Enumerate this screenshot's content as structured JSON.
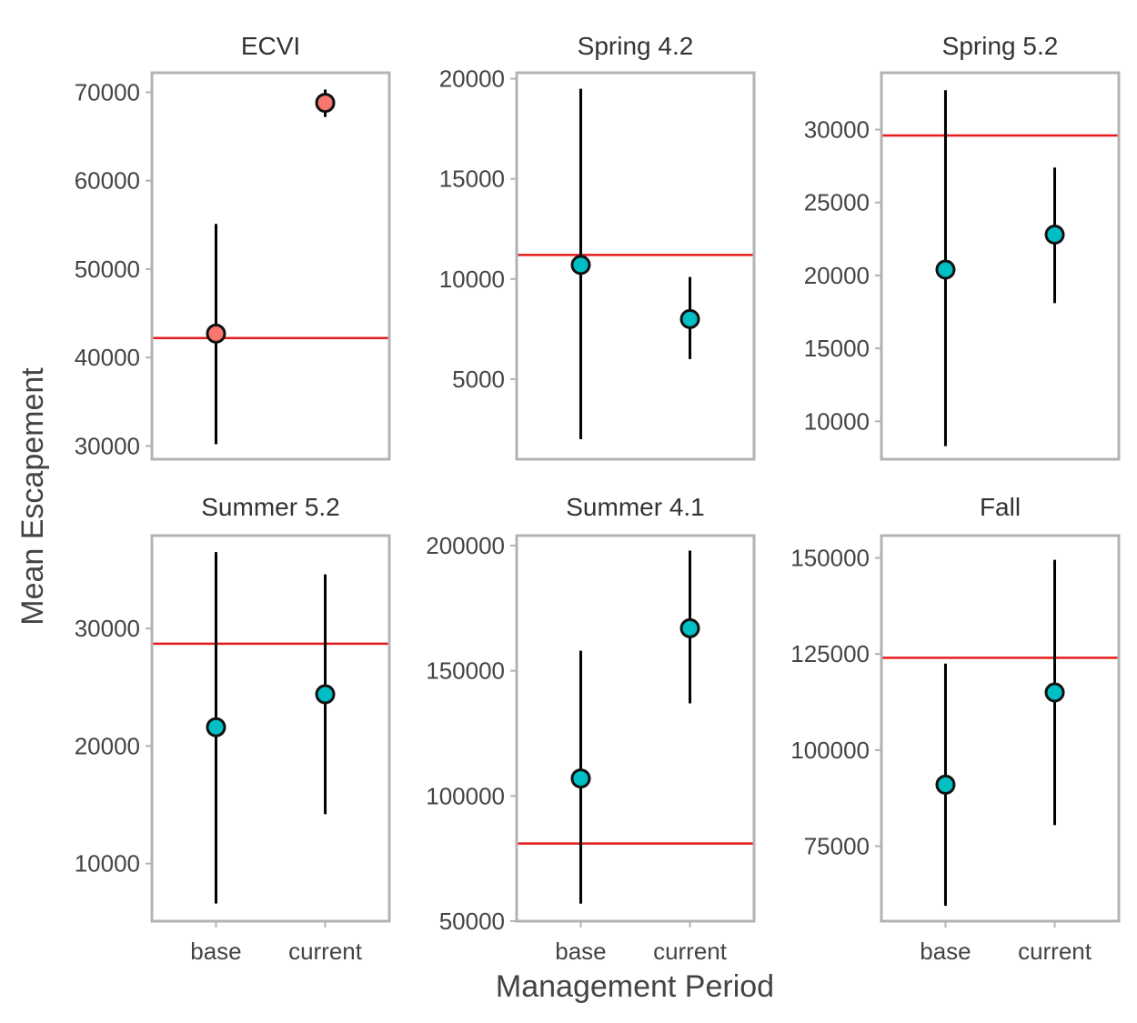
{
  "chart_data": {
    "type": "scatter",
    "xlabel": "Management Period",
    "ylabel": "Mean Escapement",
    "categories": [
      "base",
      "current"
    ],
    "colors": {
      "highlight": "#F8766D",
      "normal": "#00BFC4",
      "reference": "#E41A1C",
      "errorbar": "#000000",
      "frame": "#B3B3B3"
    },
    "panels": [
      {
        "title": "ECVI",
        "ylim": [
          28500,
          72200
        ],
        "yticks": [
          30000,
          40000,
          50000,
          60000,
          70000
        ],
        "yticklabels": [
          "30000",
          "40000",
          "50000",
          "60000",
          "70000"
        ],
        "reference": 42200,
        "point_color": "highlight",
        "points": [
          {
            "x": "base",
            "y": 42700,
            "lo": 30200,
            "hi": 55100
          },
          {
            "x": "current",
            "y": 68800,
            "lo": 67200,
            "hi": 70300
          }
        ]
      },
      {
        "title": "Spring 4.2",
        "ylim": [
          1000,
          20300
        ],
        "yticks": [
          5000,
          10000,
          15000,
          20000
        ],
        "yticklabels": [
          "5000",
          "10000",
          "15000",
          "20000"
        ],
        "reference": 11200,
        "point_color": "normal",
        "points": [
          {
            "x": "base",
            "y": 10700,
            "lo": 2000,
            "hi": 19500
          },
          {
            "x": "current",
            "y": 8000,
            "lo": 6000,
            "hi": 10100
          }
        ]
      },
      {
        "title": "Spring 5.2",
        "ylim": [
          7400,
          33900
        ],
        "yticks": [
          10000,
          15000,
          20000,
          25000,
          30000
        ],
        "yticklabels": [
          "10000",
          "15000",
          "20000",
          "25000",
          "30000"
        ],
        "reference": 29600,
        "point_color": "normal",
        "points": [
          {
            "x": "base",
            "y": 20400,
            "lo": 8300,
            "hi": 32700
          },
          {
            "x": "current",
            "y": 22800,
            "lo": 18100,
            "hi": 27400
          }
        ]
      },
      {
        "title": "Summer 5.2",
        "ylim": [
          5100,
          37900
        ],
        "yticks": [
          10000,
          20000,
          30000
        ],
        "yticklabels": [
          "10000",
          "20000",
          "30000"
        ],
        "reference": 28700,
        "point_color": "normal",
        "points": [
          {
            "x": "base",
            "y": 21600,
            "lo": 6600,
            "hi": 36500
          },
          {
            "x": "current",
            "y": 24400,
            "lo": 14200,
            "hi": 34600
          }
        ]
      },
      {
        "title": "Summer 4.1",
        "ylim": [
          50000,
          204000
        ],
        "yticks": [
          50000,
          100000,
          150000,
          200000
        ],
        "yticklabels": [
          "50000",
          "100000",
          "150000",
          "200000"
        ],
        "reference": 81000,
        "point_color": "normal",
        "points": [
          {
            "x": "base",
            "y": 107000,
            "lo": 57000,
            "hi": 158000
          },
          {
            "x": "current",
            "y": 167000,
            "lo": 137000,
            "hi": 198000
          }
        ]
      },
      {
        "title": "Fall",
        "ylim": [
          55500,
          155800
        ],
        "yticks": [
          75000,
          100000,
          125000,
          150000
        ],
        "yticklabels": [
          "75000",
          "100000",
          "125000",
          "150000"
        ],
        "reference": 124000,
        "point_color": "normal",
        "points": [
          {
            "x": "base",
            "y": 91000,
            "lo": 59500,
            "hi": 122500
          },
          {
            "x": "current",
            "y": 115000,
            "lo": 80500,
            "hi": 149500
          }
        ]
      }
    ]
  }
}
